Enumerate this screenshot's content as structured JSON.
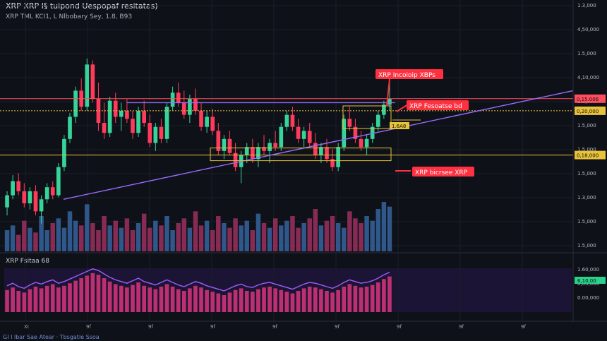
{
  "header": {
    "title": "XRP XRP I§ tuipond Uespopaf resitatas)",
    "subtitle": "XRP TML KCI1, L Nlbobary Sey, 1.8, B93"
  },
  "footer": {
    "caption": "GI I lbar Sae Atear · Tbsgatie Ssoa"
  },
  "colors": {
    "background": "#0f1118",
    "bull": "#37d49a",
    "bear": "#ff3b5c",
    "resistance": "#ff4d5e",
    "support": "#e7c23a",
    "trendline": "#9a6bff",
    "rsi_fill": "#2a1b4b",
    "rsi_bar": "#d9357a",
    "volume": "#3b6fb0"
  },
  "annotations": {
    "label_top": "XRP Incoioip XBPs",
    "label_resistance": "XRP Fesoatse bd",
    "label_support": "XRP bicrsee XRP",
    "label_mid": "1.6A8"
  },
  "price_axis": {
    "ticks": [
      "1.3,000",
      "4,50,000",
      "1.5,000",
      "4,10,000",
      "1.3,000",
      "1.5,000",
      "1.5,000",
      "1.5,000",
      "1.3,000",
      "1.5,000",
      "1.5,000"
    ],
    "badges": [
      "0,15.006",
      "0,20,000",
      "0,18,000"
    ]
  },
  "rsi": {
    "title": "XRP Fsitaa 68",
    "ticks": [
      "1.60,000",
      "0,80,000",
      "0.00,000"
    ],
    "badge": "6,10,00"
  },
  "time_axis": {
    "ticks": [
      "XI",
      "9f",
      "9f",
      "9f",
      "9f",
      "9f",
      "9f",
      "9f",
      "9f"
    ]
  },
  "chart_data": {
    "type": "candlestick",
    "title": "XRP XRP I§ tuipond Uespopaf resitatas)",
    "ylim": [
      0,
      100
    ],
    "series": [
      {
        "open": 18,
        "high": 26,
        "low": 14,
        "close": 24
      },
      {
        "open": 24,
        "high": 34,
        "low": 22,
        "close": 31
      },
      {
        "open": 31,
        "high": 35,
        "low": 24,
        "close": 26
      },
      {
        "open": 26,
        "high": 30,
        "low": 18,
        "close": 20
      },
      {
        "open": 20,
        "high": 28,
        "low": 17,
        "close": 26
      },
      {
        "open": 26,
        "high": 29,
        "low": 14,
        "close": 16
      },
      {
        "open": 16,
        "high": 24,
        "low": 10,
        "close": 22
      },
      {
        "open": 22,
        "high": 30,
        "low": 20,
        "close": 28
      },
      {
        "open": 28,
        "high": 31,
        "low": 22,
        "close": 24
      },
      {
        "open": 24,
        "high": 40,
        "low": 23,
        "close": 38
      },
      {
        "open": 38,
        "high": 54,
        "low": 36,
        "close": 52
      },
      {
        "open": 52,
        "high": 65,
        "low": 50,
        "close": 63
      },
      {
        "open": 63,
        "high": 78,
        "low": 60,
        "close": 76
      },
      {
        "open": 76,
        "high": 82,
        "low": 66,
        "close": 68
      },
      {
        "open": 68,
        "high": 92,
        "low": 66,
        "close": 89
      },
      {
        "open": 89,
        "high": 91,
        "low": 70,
        "close": 72
      },
      {
        "open": 72,
        "high": 80,
        "low": 56,
        "close": 60
      },
      {
        "open": 60,
        "high": 70,
        "low": 52,
        "close": 55
      },
      {
        "open": 55,
        "high": 73,
        "low": 53,
        "close": 71
      },
      {
        "open": 71,
        "high": 75,
        "low": 60,
        "close": 63
      },
      {
        "open": 63,
        "high": 70,
        "low": 56,
        "close": 66
      },
      {
        "open": 66,
        "high": 72,
        "low": 60,
        "close": 62
      },
      {
        "open": 62,
        "high": 66,
        "low": 52,
        "close": 55
      },
      {
        "open": 55,
        "high": 68,
        "low": 53,
        "close": 66
      },
      {
        "open": 66,
        "high": 71,
        "low": 58,
        "close": 60
      },
      {
        "open": 60,
        "high": 64,
        "low": 48,
        "close": 50
      },
      {
        "open": 50,
        "high": 60,
        "low": 46,
        "close": 58
      },
      {
        "open": 58,
        "high": 62,
        "low": 50,
        "close": 52
      },
      {
        "open": 52,
        "high": 70,
        "low": 50,
        "close": 68
      },
      {
        "open": 68,
        "high": 78,
        "low": 66,
        "close": 75
      },
      {
        "open": 75,
        "high": 80,
        "low": 68,
        "close": 70
      },
      {
        "open": 70,
        "high": 76,
        "low": 62,
        "close": 64
      },
      {
        "open": 64,
        "high": 74,
        "low": 60,
        "close": 72
      },
      {
        "open": 72,
        "high": 77,
        "low": 64,
        "close": 66
      },
      {
        "open": 66,
        "high": 70,
        "low": 56,
        "close": 58
      },
      {
        "open": 58,
        "high": 66,
        "low": 55,
        "close": 63
      },
      {
        "open": 63,
        "high": 67,
        "low": 54,
        "close": 56
      },
      {
        "open": 56,
        "high": 60,
        "low": 44,
        "close": 46
      },
      {
        "open": 46,
        "high": 54,
        "low": 42,
        "close": 52
      },
      {
        "open": 52,
        "high": 56,
        "low": 44,
        "close": 45
      },
      {
        "open": 45,
        "high": 50,
        "low": 36,
        "close": 38
      },
      {
        "open": 38,
        "high": 46,
        "low": 30,
        "close": 44
      },
      {
        "open": 44,
        "high": 50,
        "low": 40,
        "close": 48
      },
      {
        "open": 48,
        "high": 52,
        "low": 40,
        "close": 42
      },
      {
        "open": 42,
        "high": 50,
        "low": 38,
        "close": 48
      },
      {
        "open": 48,
        "high": 54,
        "low": 44,
        "close": 46
      },
      {
        "open": 46,
        "high": 52,
        "low": 40,
        "close": 50
      },
      {
        "open": 50,
        "high": 56,
        "low": 46,
        "close": 48
      },
      {
        "open": 48,
        "high": 60,
        "low": 46,
        "close": 58
      },
      {
        "open": 58,
        "high": 66,
        "low": 56,
        "close": 64
      },
      {
        "open": 64,
        "high": 68,
        "low": 56,
        "close": 58
      },
      {
        "open": 58,
        "high": 62,
        "low": 50,
        "close": 52
      },
      {
        "open": 52,
        "high": 58,
        "low": 48,
        "close": 56
      },
      {
        "open": 56,
        "high": 60,
        "low": 48,
        "close": 50
      },
      {
        "open": 50,
        "high": 55,
        "low": 42,
        "close": 44
      },
      {
        "open": 44,
        "high": 50,
        "low": 40,
        "close": 48
      },
      {
        "open": 48,
        "high": 52,
        "low": 40,
        "close": 42
      },
      {
        "open": 42,
        "high": 47,
        "low": 36,
        "close": 38
      },
      {
        "open": 38,
        "high": 50,
        "low": 36,
        "close": 48
      },
      {
        "open": 48,
        "high": 64,
        "low": 46,
        "close": 62
      },
      {
        "open": 62,
        "high": 68,
        "low": 56,
        "close": 58
      },
      {
        "open": 58,
        "high": 62,
        "low": 50,
        "close": 52
      },
      {
        "open": 52,
        "high": 56,
        "low": 46,
        "close": 48
      },
      {
        "open": 48,
        "high": 54,
        "low": 44,
        "close": 52
      },
      {
        "open": 52,
        "high": 60,
        "low": 50,
        "close": 58
      },
      {
        "open": 58,
        "high": 66,
        "low": 56,
        "close": 64
      },
      {
        "open": 64,
        "high": 71,
        "low": 62,
        "close": 69
      },
      {
        "open": 69,
        "high": 82,
        "low": 66,
        "close": 72
      }
    ],
    "volume": [
      18,
      22,
      14,
      26,
      20,
      16,
      30,
      18,
      24,
      28,
      20,
      34,
      26,
      22,
      40,
      24,
      18,
      30,
      22,
      26,
      20,
      28,
      18,
      24,
      32,
      20,
      26,
      22,
      30,
      18,
      24,
      28,
      20,
      34,
      22,
      26,
      18,
      30,
      24,
      20,
      28,
      22,
      26,
      18,
      32,
      24,
      20,
      28,
      22,
      26,
      30,
      20,
      24,
      28,
      36,
      22,
      26,
      30,
      24,
      20,
      34,
      28,
      24,
      30,
      26,
      36,
      42,
      38
    ],
    "rsi": [
      52,
      58,
      50,
      46,
      54,
      60,
      56,
      62,
      66,
      58,
      62,
      68,
      74,
      80,
      86,
      92,
      88,
      80,
      72,
      66,
      62,
      58,
      64,
      70,
      62,
      58,
      54,
      60,
      66,
      60,
      54,
      50,
      56,
      62,
      58,
      52,
      48,
      44,
      40,
      46,
      52,
      56,
      50,
      48,
      54,
      58,
      60,
      56,
      52,
      48,
      44,
      50,
      56,
      60,
      58,
      54,
      50,
      46,
      52,
      60,
      66,
      62,
      58,
      60,
      64,
      70,
      78,
      84
    ],
    "levels": {
      "resistance": 72,
      "support": 44,
      "mid": 66
    },
    "trendline": {
      "start": 22,
      "end": 76
    }
  }
}
